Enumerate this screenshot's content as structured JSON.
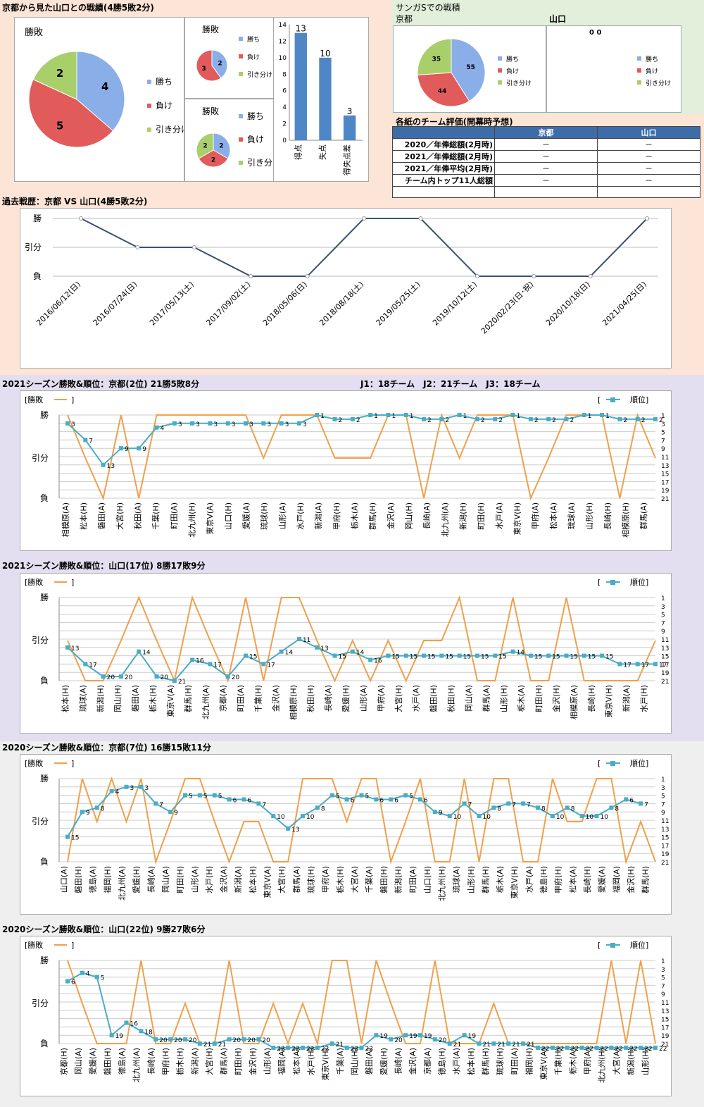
{
  "colors": {
    "win": "#8aaee8",
    "lose": "#e15b5b",
    "draw": "#a9cf6b",
    "line": "#39516f",
    "ranktrack": "#4aacc6",
    "result": "#f0a04b",
    "bar": "#4f86c6"
  },
  "top": {
    "title": "京都から見た山口との戦績(4勝5敗2分)",
    "legend": [
      "勝ち",
      "負け",
      "引き分け"
    ],
    "big_label": "勝敗",
    "small1_label": "勝敗",
    "small2_label": "勝敗",
    "sanga": {
      "title": "サンガSでの戦積",
      "kyoto": "京都",
      "yamaguchi": "山口",
      "empty_label": "0 0"
    },
    "eval": {
      "title": "各紙のチーム評価(開幕時予想)",
      "col_kyoto": "京都",
      "col_yamaguchi": "山口",
      "rows": [
        {
          "label": "2020／年俸総額(2月時)",
          "kyoto": "－",
          "yamaguchi": "－"
        },
        {
          "label": "2021／年俸総額(2月時)",
          "kyoto": "－",
          "yamaguchi": "－"
        },
        {
          "label": "2021／年俸平均(2月時)",
          "kyoto": "－",
          "yamaguchi": "－"
        },
        {
          "label": "チーム内トップ11人総額",
          "kyoto": "－",
          "yamaguchi": "－"
        },
        {
          "label": "",
          "kyoto": "",
          "yamaguchi": ""
        }
      ]
    }
  },
  "history": {
    "title": "過去戦歴：京都 VS 山口(4勝5敗2分)",
    "levels": [
      "勝",
      "引分",
      "負"
    ]
  },
  "seasons": {
    "s1": {
      "title": "2021シーズン勝敗&順位：京都(2位) 21勝5敗8分",
      "note": "J1：18チーム　J2：21チーム　J3：18チーム",
      "left_legend": "[勝敗",
      "right_legend": "順位]",
      "bracket_close": "]",
      "bracket_open": "["
    },
    "s2": {
      "title": "2021シーズン勝敗&順位：山口(17位) 8勝17敗9分",
      "left_legend": "[勝敗",
      "right_legend": "順位]",
      "bracket_close": "]",
      "bracket_open": "["
    },
    "s3": {
      "title": "2020シーズン勝敗&順位：京都(7位) 16勝15敗11分",
      "left_legend": "[勝敗",
      "right_legend": "順位]",
      "bracket_close": "]",
      "bracket_open": "["
    },
    "s4": {
      "title": "2020シーズン勝敗&順位：山口(22位) 9勝27敗6分",
      "left_legend": "[勝敗",
      "right_legend": "順位]",
      "bracket_close": "]",
      "bracket_open": "["
    }
  },
  "chart_data": [
    {
      "type": "pie",
      "id": "overall",
      "labels": [
        "勝ち",
        "負け",
        "引き分け"
      ],
      "values": [
        4,
        5,
        2
      ]
    },
    {
      "type": "pie",
      "id": "home",
      "labels": [
        "勝ち",
        "負け",
        "引き分け"
      ],
      "values": [
        2,
        3,
        0
      ]
    },
    {
      "type": "pie",
      "id": "away",
      "labels": [
        "勝ち",
        "負け",
        "引き分け"
      ],
      "values": [
        2,
        2,
        2
      ]
    },
    {
      "type": "bar",
      "id": "goals",
      "categories": [
        "得点",
        "失点",
        "得失点差"
      ],
      "values": [
        13,
        10,
        3
      ],
      "ylim": [
        0,
        14
      ],
      "yticks": [
        0,
        2,
        4,
        6,
        8,
        10,
        12,
        14
      ]
    },
    {
      "type": "pie",
      "id": "sanga_kyoto",
      "labels": [
        "勝ち",
        "負け",
        "引き分け"
      ],
      "values": [
        55,
        44,
        35
      ]
    },
    {
      "type": "pie",
      "id": "sanga_yamaguchi",
      "labels": [
        "勝ち",
        "負け",
        "引き分け"
      ],
      "values": [
        0,
        0,
        0
      ]
    },
    {
      "type": "line",
      "id": "history",
      "categories": [
        "2016/06/12(日)",
        "2016/07/24(日)",
        "2017/05/13(土)",
        "2017/09/02(土)",
        "2018/05/06(日)",
        "2018/08/18(土)",
        "2019/05/25(土)",
        "2019/10/12(土)",
        "2020/02/23(日･祝)",
        "2020/10/18(日)",
        "2021/04/25(日)"
      ],
      "results": [
        "勝",
        "引分",
        "引分",
        "負",
        "負",
        "勝",
        "勝",
        "負",
        "負",
        "負",
        "勝"
      ]
    },
    {
      "type": "line",
      "id": "s1",
      "opponents": [
        "相模原(A)",
        "松本(H)",
        "磐田(A)",
        "大宮(H)",
        "秋田(A)",
        "千葉(H)",
        "町田(A)",
        "北九州(H)",
        "東京V(A)",
        "山口(H)",
        "愛媛(A)",
        "琉球(H)",
        "山形(A)",
        "水戸(H)",
        "新潟(A)",
        "甲府(H)",
        "栃木(A)",
        "群馬(H)",
        "金沢(A)",
        "岡山(H)",
        "長崎(A)",
        "北九州(A)",
        "新潟(H)",
        "町田(H)",
        "水戸(A)",
        "東京V(H)",
        "甲府(A)",
        "松本(A)",
        "琉球(A)",
        "山形(H)",
        "長崎(H)",
        "相模原(H)",
        "群馬(A)"
      ],
      "results": [
        1,
        0,
        -1,
        1,
        -1,
        1,
        1,
        1,
        1,
        1,
        1,
        0,
        1,
        1,
        1,
        0,
        0,
        0,
        1,
        1,
        -1,
        1,
        0,
        1,
        1,
        1,
        -1,
        0,
        1,
        1,
        1,
        -1,
        1,
        0
      ],
      "ranks": [
        3,
        7,
        13,
        9,
        9,
        4,
        3,
        3,
        3,
        3,
        3,
        3,
        3,
        3,
        1,
        2,
        2,
        1,
        1,
        1,
        2,
        2,
        1,
        2,
        2,
        1,
        2,
        2,
        2,
        1,
        1,
        2,
        2,
        2
      ],
      "rank_ticks": [
        1,
        3,
        5,
        7,
        9,
        11,
        13,
        15,
        17,
        19,
        21
      ]
    },
    {
      "type": "line",
      "id": "s2",
      "opponents": [
        "松本(H)",
        "琉球(A)",
        "新潟(H)",
        "岡山(H)",
        "磐田(A)",
        "栃木(H)",
        "東京V(A)",
        "群馬(H)",
        "北九州(A)",
        "京都(A)",
        "町田(A)",
        "千葉(H)",
        "金沢(A)",
        "相模原(H)",
        "秋田(H)",
        "長崎(A)",
        "愛媛(H)",
        "山形(A)",
        "甲府(A)",
        "大宮(H)",
        "水戸(A)",
        "磐田(H)",
        "秋田(H)",
        "岡山(A)",
        "群馬(A)",
        "山形(H)",
        "栃木(A)",
        "町田(H)",
        "金沢(H)",
        "相模原(A)",
        "長崎(H)",
        "東京V(H)",
        "新潟(A)",
        "水戸(H)"
      ],
      "results": [
        0,
        -1,
        -1,
        0,
        1,
        0,
        -1,
        1,
        0,
        -1,
        1,
        -1,
        1,
        1,
        0,
        -1,
        0,
        -1,
        0,
        -1,
        0,
        0,
        1,
        -1,
        -1,
        1,
        -1,
        -1,
        1,
        -1,
        -1,
        -1,
        -1,
        0
      ],
      "ranks": [
        13,
        17,
        20,
        20,
        14,
        20,
        21,
        16,
        17,
        20,
        15,
        17,
        14,
        11,
        13,
        15,
        14,
        16,
        15,
        15,
        15,
        15,
        15,
        15,
        15,
        14,
        15,
        15,
        15,
        15,
        15,
        17,
        17,
        17
      ],
      "rank_ticks": [
        1,
        3,
        5,
        7,
        9,
        11,
        13,
        15,
        17,
        19,
        21
      ]
    },
    {
      "type": "line",
      "id": "s3",
      "opponents": [
        "山口(A)",
        "磐田(H)",
        "徳島(A)",
        "福岡(H)",
        "北九州(A)",
        "愛媛(H)",
        "長崎(A)",
        "岡山(A)",
        "町田(H)",
        "山形(A)",
        "水戸(H)",
        "金沢(A)",
        "新潟(A)",
        "松本(H)",
        "東京V(A)",
        "大宮(H)",
        "群馬(A)",
        "琉球(H)",
        "甲府(A)",
        "栃木(H)",
        "大宮(A)",
        "千葉(A)",
        "磐田(H)",
        "新潟(H)",
        "町田(A)",
        "山口(H)",
        "北九州(H)",
        "琉球(A)",
        "山形(H)",
        "群馬(H)",
        "栃木(A)",
        "東京V(H)",
        "水戸(A)",
        "徳島(H)",
        "甲府(H)",
        "松本(A)",
        "長崎(H)",
        "愛媛(A)",
        "福岡(A)",
        "金沢(H)",
        "群馬(H)"
      ],
      "results": [
        -1,
        1,
        0,
        1,
        0,
        1,
        -1,
        0,
        1,
        1,
        0,
        -1,
        0,
        0,
        -1,
        -1,
        1,
        1,
        1,
        0,
        1,
        1,
        -1,
        0,
        1,
        -1,
        -1,
        1,
        -1,
        1,
        1,
        -1,
        -1,
        1,
        0,
        0,
        1,
        1,
        -1,
        0,
        -1
      ],
      "ranks": [
        15,
        9,
        8,
        4,
        3,
        3,
        7,
        9,
        5,
        5,
        5,
        6,
        6,
        7,
        10,
        13,
        10,
        8,
        5,
        6,
        5,
        6,
        6,
        5,
        6,
        9,
        10,
        7,
        10,
        8,
        7,
        7,
        8,
        10,
        8,
        10,
        10,
        8,
        6,
        7,
        null
      ],
      "rank_ticks": [
        1,
        3,
        5,
        7,
        9,
        11,
        13,
        15,
        17,
        19,
        21
      ]
    },
    {
      "type": "line",
      "id": "s4",
      "opponents": [
        "京都(H)",
        "岡山(A)",
        "愛媛(A)",
        "磐田(H)",
        "徳島(A)",
        "北九州(A)",
        "長崎(A)",
        "甲府(H)",
        "栃木(H)",
        "新潟(A)",
        "大宮(H)",
        "群馬(A)",
        "町田(H)",
        "金沢(H)",
        "山形(A)",
        "福岡(A)",
        "松本(A)",
        "水戸(H)",
        "東京V(H)",
        "千葉(A)",
        "岡山(H)",
        "磐田(A)",
        "愛媛(H)",
        "長崎(A)",
        "金沢(A)",
        "京都(A)",
        "徳島(H)",
        "水戸(A)",
        "松本(H)",
        "群馬(H)",
        "琉球(H)",
        "町田(A)",
        "福岡(H)",
        "東京V(A)",
        "千葉(H)",
        "栃木(A)",
        "甲府(A)",
        "北九州(H)",
        "大宮(A)",
        "新潟(H)",
        "山形(H)"
      ],
      "results": [
        1,
        0,
        -1,
        -1,
        -1,
        1,
        -1,
        -1,
        0,
        -1,
        -1,
        1,
        -1,
        -1,
        0,
        -1,
        0,
        -1,
        1,
        1,
        -1,
        1,
        0,
        -1,
        -1,
        1,
        -1,
        -1,
        -1,
        0,
        -1,
        -1,
        -1,
        -1,
        -1,
        -1,
        -1,
        1,
        -1,
        1,
        -1
      ],
      "ranks": [
        6,
        4,
        5,
        19,
        16,
        18,
        20,
        20,
        20,
        21,
        21,
        20,
        20,
        20,
        22,
        22,
        22,
        22,
        21,
        22,
        22,
        19,
        20,
        19,
        19,
        20,
        21,
        19,
        21,
        21,
        21,
        21,
        22,
        22,
        22,
        22,
        22,
        22,
        22,
        22,
        22
      ],
      "rank_ticks": [
        1,
        3,
        5,
        7,
        9,
        11,
        13,
        15,
        17,
        19,
        21
      ]
    }
  ]
}
